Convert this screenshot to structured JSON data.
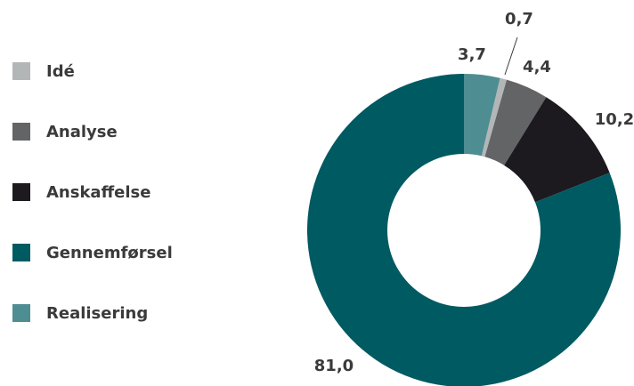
{
  "chart_data": {
    "type": "donut",
    "categories": [
      "Idé",
      "Analyse",
      "Anskaffelse",
      "Gennemførsel",
      "Realisering"
    ],
    "values": [
      0.7,
      4.4,
      10.2,
      81.0,
      3.7
    ],
    "value_labels": [
      "0,7",
      "4,4",
      "10,2",
      "81,0",
      "3,7"
    ],
    "colors": [
      "#b3b6b7",
      "#636466",
      "#1c1a1f",
      "#005a62",
      "#4e8d91"
    ],
    "legend": "left"
  }
}
